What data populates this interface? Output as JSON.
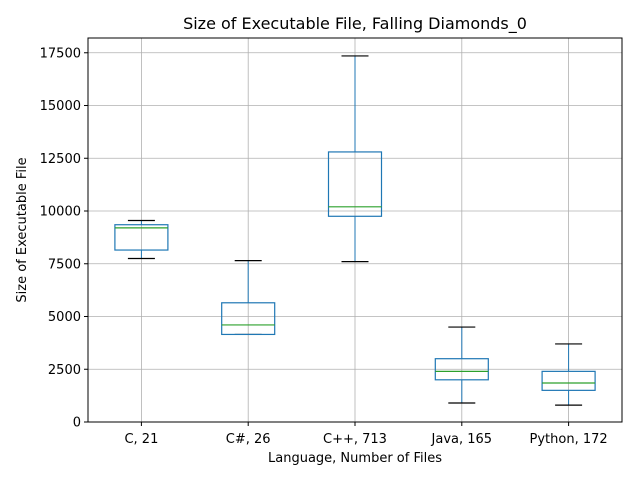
{
  "chart_data": {
    "type": "box",
    "title": "Size of Executable File, Falling Diamonds_0",
    "xlabel": "Language, Number of Files",
    "ylabel": "Size of Executable File",
    "ylim": [
      0,
      18200
    ],
    "yticks": [
      0,
      2500,
      5000,
      7500,
      10000,
      12500,
      15000,
      17500
    ],
    "grid": true,
    "categories": [
      "C, 21",
      "C#, 26",
      "C++, 713",
      "Java, 165",
      "Python, 172"
    ],
    "boxes": [
      {
        "whisker_low": 7750,
        "q1": 8150,
        "median": 9200,
        "q3": 9350,
        "whisker_high": 9550
      },
      {
        "whisker_low": 4150,
        "q1": 4150,
        "median": 4600,
        "q3": 5650,
        "whisker_high": 7650
      },
      {
        "whisker_low": 7600,
        "q1": 9750,
        "median": 10200,
        "q3": 12800,
        "whisker_high": 17350
      },
      {
        "whisker_low": 900,
        "q1": 2000,
        "median": 2400,
        "q3": 3000,
        "whisker_high": 4500
      },
      {
        "whisker_low": 800,
        "q1": 1500,
        "median": 1850,
        "q3": 2400,
        "whisker_high": 3700
      }
    ],
    "colors": {
      "box": "#1f77b4",
      "median": "#2ca02c",
      "whisker_cap": "#000000",
      "grid": "#b0b0b0",
      "axes": "#000000"
    }
  }
}
